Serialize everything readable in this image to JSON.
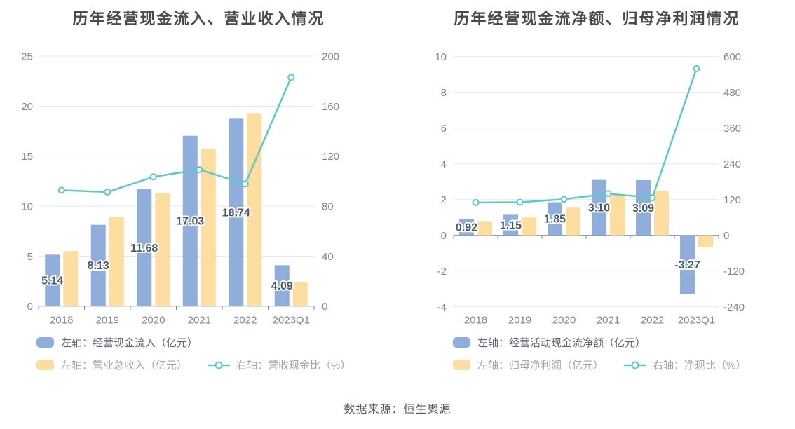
{
  "source_note": "数据来源：恒生聚源",
  "colors": {
    "bar_blue": "#8FAEDC",
    "bar_orange": "#FDDDA0",
    "line_teal": "#5FC8C5",
    "grid": "#E1E7F3",
    "axis": "#76808C",
    "tick_label": "#7F8896",
    "value_label": "#4C5866",
    "title": "#4A4A4A",
    "legend_text_active": "#5C6775",
    "legend_text_muted": "#9FA6B0",
    "divider": "#ECECEC",
    "source_text": "#595959"
  },
  "chart_data": [
    {
      "type": "bar",
      "subtype": "grouped bars + line on secondary axis",
      "title": "历年经营现金流入、营业收入情况",
      "categories": [
        "2018",
        "2019",
        "2020",
        "2021",
        "2022",
        "2023Q1"
      ],
      "series": [
        {
          "name": "左轴：经营现金流入（亿元）",
          "type": "bar",
          "axis": "left",
          "color_key": "bar_blue",
          "values": [
            5.14,
            8.13,
            11.68,
            17.03,
            18.74,
            4.09
          ],
          "data_labels": [
            "5.14",
            "8.13",
            "11.68",
            "17.03",
            "18.74",
            "4.09"
          ]
        },
        {
          "name": "左轴：营业总收入（亿元）",
          "type": "bar",
          "axis": "left",
          "color_key": "bar_orange",
          "values": [
            5.5,
            8.9,
            11.3,
            15.7,
            19.3,
            2.35
          ]
        },
        {
          "name": "右轴：营收现金比（%）",
          "type": "line",
          "axis": "right",
          "color_key": "line_teal",
          "values": [
            92.7,
            91.2,
            103.4,
            109.2,
            97.7,
            183
          ]
        }
      ],
      "left_axis": {
        "min": 0,
        "max": 25,
        "ticks": [
          0,
          5,
          10,
          15,
          20,
          25
        ]
      },
      "right_axis": {
        "min": 0,
        "max": 200,
        "ticks": [
          0,
          40,
          80,
          120,
          160,
          200
        ]
      },
      "grid": true,
      "legend_position": "bottom"
    },
    {
      "type": "bar",
      "subtype": "grouped bars + line on secondary axis",
      "title": "历年经营现金流净额、归母净利润情况",
      "categories": [
        "2018",
        "2019",
        "2020",
        "2021",
        "2022",
        "2023Q1"
      ],
      "series": [
        {
          "name": "左轴：经营活动现金流净额（亿元）",
          "type": "bar",
          "axis": "left",
          "color_key": "bar_blue",
          "values": [
            0.92,
            1.15,
            1.85,
            3.1,
            3.09,
            -3.27
          ],
          "data_labels": [
            "0.92",
            "1.15",
            "1.85",
            "3.10",
            "3.09",
            "-3.27"
          ]
        },
        {
          "name": "左轴：归母净利润（亿元）",
          "type": "bar",
          "axis": "left",
          "color_key": "bar_orange",
          "values": [
            0.8,
            1.0,
            1.55,
            2.25,
            2.5,
            -0.65
          ]
        },
        {
          "name": "右轴：净现比（%）",
          "type": "line",
          "axis": "right",
          "color_key": "line_teal",
          "values": [
            110,
            111,
            121,
            140,
            126,
            560
          ]
        }
      ],
      "left_axis": {
        "min": -4,
        "max": 10,
        "ticks": [
          -4,
          -2,
          0,
          2,
          4,
          6,
          8,
          10
        ]
      },
      "right_axis": {
        "min": -240,
        "max": 600,
        "ticks": [
          -240,
          -120,
          0,
          120,
          240,
          360,
          480,
          600
        ]
      },
      "grid": true,
      "legend_position": "bottom"
    }
  ]
}
